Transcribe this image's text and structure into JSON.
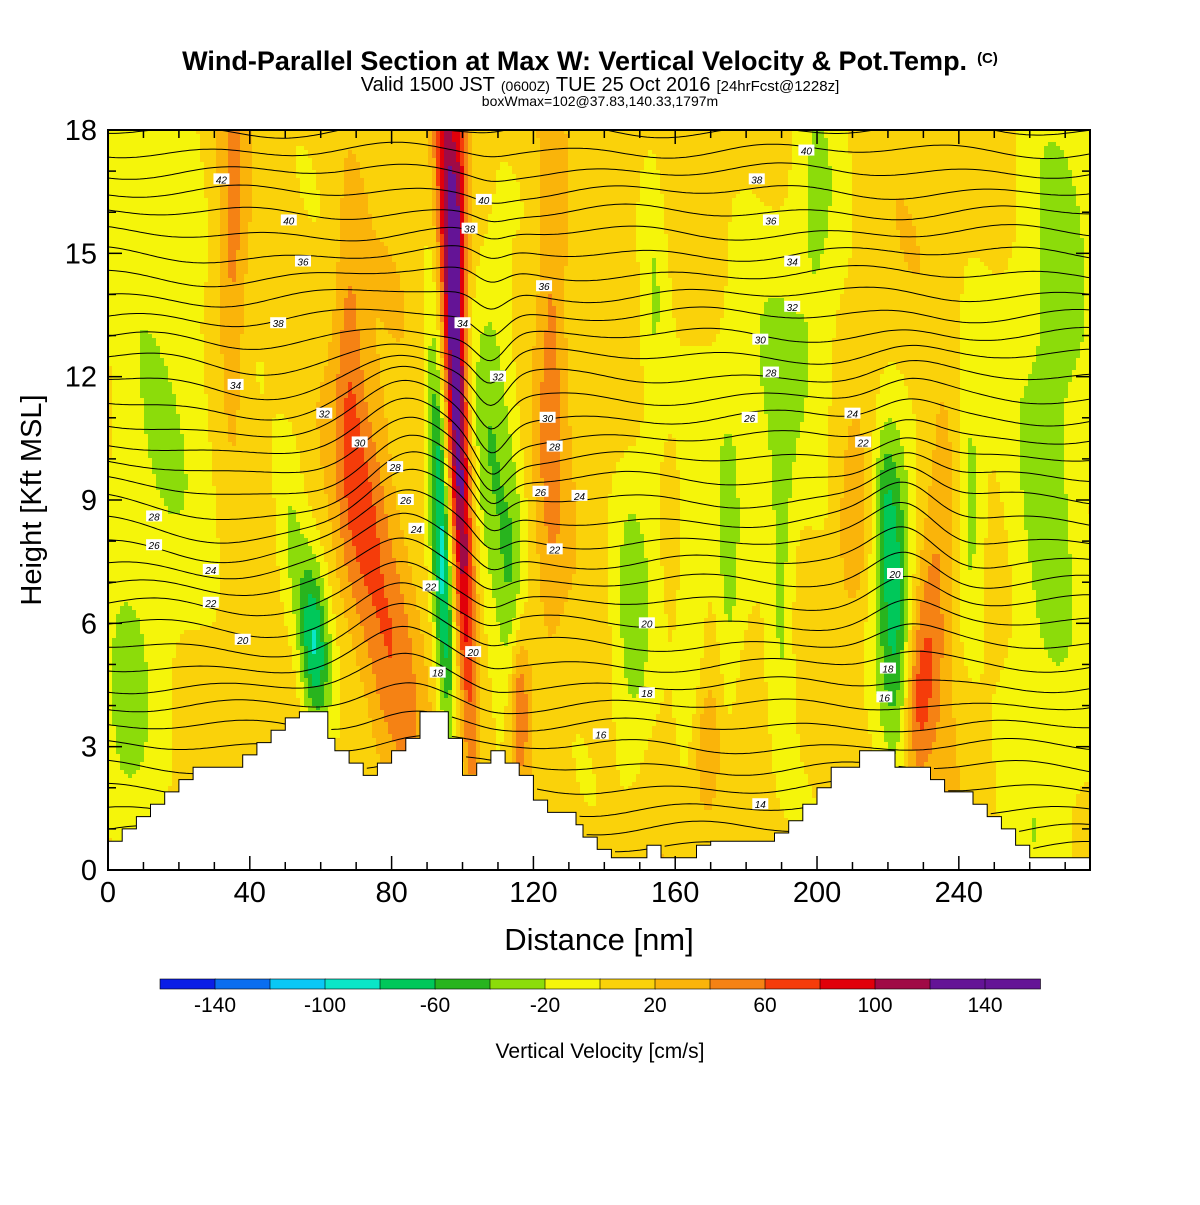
{
  "chart_data": {
    "type": "heatmap",
    "title": "Wind-Parallel Section at Max W: Vertical Velocity & Pot.Temp.",
    "title_mark": "(C)",
    "subtitle_parts": [
      "Valid 1500 JST",
      "(0600Z)",
      "TUE 25 Oct 2016",
      "[24hrFcst@1228z]"
    ],
    "subtitle2": "boxWmax=102@37.83,140.33,1797m",
    "xlabel": "Distance [nm]",
    "ylabel": "Height [Kft MSL]",
    "xlim": [
      0,
      277
    ],
    "ylim": [
      0,
      18
    ],
    "x_ticks": [
      0,
      40,
      80,
      120,
      160,
      200,
      240
    ],
    "y_ticks": [
      0,
      3,
      6,
      9,
      12,
      15,
      18
    ],
    "grid": false,
    "colorbar": {
      "label": "Vertical Velocity [cm/s]",
      "tick_labels": [
        "-140",
        "-100",
        "-60",
        "-20",
        "20",
        "60",
        "100",
        "140"
      ],
      "bins": [
        -160,
        -140,
        -120,
        -100,
        -80,
        -60,
        -40,
        -20,
        0,
        20,
        40,
        60,
        80,
        100,
        120,
        140,
        160
      ],
      "colors": [
        "#0a1ee6",
        "#0a6ef0",
        "#0ac8f5",
        "#0ae6c8",
        "#00c85a",
        "#28b41e",
        "#8cdc0a",
        "#f5f50a",
        "#fad20a",
        "#fab40a",
        "#f58214",
        "#f53c0a",
        "#e1000a",
        "#a00a46",
        "#641496",
        "#641496"
      ]
    },
    "terrain": [
      [
        0,
        0.7
      ],
      [
        4,
        0.7
      ],
      [
        4,
        1.0
      ],
      [
        8,
        1.0
      ],
      [
        8,
        1.3
      ],
      [
        12,
        1.3
      ],
      [
        12,
        1.6
      ],
      [
        16,
        1.6
      ],
      [
        16,
        1.9
      ],
      [
        20,
        1.9
      ],
      [
        20,
        2.2
      ],
      [
        24,
        2.2
      ],
      [
        24,
        2.5
      ],
      [
        38,
        2.5
      ],
      [
        38,
        2.8
      ],
      [
        42,
        2.8
      ],
      [
        42,
        3.1
      ],
      [
        46,
        3.1
      ],
      [
        46,
        3.4
      ],
      [
        50,
        3.4
      ],
      [
        50,
        3.7
      ],
      [
        54,
        3.7
      ],
      [
        54,
        3.85
      ],
      [
        62,
        3.85
      ],
      [
        62,
        3.2
      ],
      [
        64,
        3.2
      ],
      [
        64,
        2.9
      ],
      [
        68,
        2.9
      ],
      [
        68,
        2.6
      ],
      [
        72,
        2.6
      ],
      [
        72,
        2.3
      ],
      [
        76,
        2.3
      ],
      [
        76,
        2.6
      ],
      [
        80,
        2.6
      ],
      [
        80,
        2.9
      ],
      [
        84,
        2.9
      ],
      [
        84,
        3.2
      ],
      [
        88,
        3.2
      ],
      [
        88,
        3.85
      ],
      [
        96,
        3.85
      ],
      [
        96,
        3.2
      ],
      [
        100,
        3.2
      ],
      [
        100,
        2.3
      ],
      [
        104,
        2.3
      ],
      [
        104,
        2.6
      ],
      [
        108,
        2.6
      ],
      [
        108,
        2.9
      ],
      [
        112,
        2.9
      ],
      [
        112,
        2.6
      ],
      [
        116,
        2.6
      ],
      [
        116,
        2.3
      ],
      [
        120,
        2.3
      ],
      [
        120,
        1.7
      ],
      [
        124,
        1.7
      ],
      [
        124,
        1.4
      ],
      [
        132,
        1.4
      ],
      [
        132,
        1.1
      ],
      [
        134,
        1.1
      ],
      [
        134,
        0.8
      ],
      [
        138,
        0.8
      ],
      [
        138,
        0.5
      ],
      [
        142,
        0.5
      ],
      [
        142,
        0.3
      ],
      [
        152,
        0.3
      ],
      [
        152,
        0.6
      ],
      [
        156,
        0.6
      ],
      [
        156,
        0.3
      ],
      [
        166,
        0.3
      ],
      [
        166,
        0.6
      ],
      [
        170,
        0.6
      ],
      [
        170,
        0.7
      ],
      [
        188,
        0.7
      ],
      [
        188,
        0.9
      ],
      [
        192,
        0.9
      ],
      [
        192,
        1.2
      ],
      [
        196,
        1.2
      ],
      [
        196,
        1.6
      ],
      [
        200,
        1.6
      ],
      [
        200,
        2.0
      ],
      [
        204,
        2.0
      ],
      [
        204,
        2.5
      ],
      [
        212,
        2.5
      ],
      [
        212,
        2.9
      ],
      [
        222,
        2.9
      ],
      [
        222,
        2.5
      ],
      [
        232,
        2.5
      ],
      [
        232,
        2.2
      ],
      [
        236,
        2.2
      ],
      [
        236,
        1.9
      ],
      [
        244,
        1.9
      ],
      [
        244,
        1.6
      ],
      [
        248,
        1.6
      ],
      [
        248,
        1.3
      ],
      [
        252,
        1.3
      ],
      [
        252,
        1.0
      ],
      [
        256,
        1.0
      ],
      [
        256,
        0.6
      ],
      [
        260,
        0.6
      ],
      [
        260,
        0.3
      ],
      [
        277,
        0.3
      ]
    ],
    "w_features": [
      {
        "x": 98,
        "y": 12.0,
        "sx": 2.2,
        "sy": 6.0,
        "tilt": -0.5,
        "w": 130
      },
      {
        "x": 99,
        "y": 16.0,
        "sx": 1.8,
        "sy": 2.5,
        "tilt": 0,
        "w": 60
      },
      {
        "x": 94,
        "y": 8.0,
        "sx": 2.0,
        "sy": 3.5,
        "tilt": -0.45,
        "w": -95
      },
      {
        "x": 58,
        "y": 5.5,
        "sx": 3.0,
        "sy": 1.5,
        "tilt": -0.6,
        "w": -90
      },
      {
        "x": 51,
        "y": 8.0,
        "sx": 3.0,
        "sy": 1.8,
        "tilt": 0,
        "w": -30
      },
      {
        "x": 80,
        "y": 5.5,
        "sx": 6.0,
        "sy": 2.5,
        "tilt": -0.7,
        "w": 48
      },
      {
        "x": 73,
        "y": 9.0,
        "sx": 4.0,
        "sy": 2.0,
        "tilt": 0,
        "w": 35
      },
      {
        "x": 116,
        "y": 4.0,
        "sx": 2.0,
        "sy": 1.5,
        "tilt": 0,
        "w": 60
      },
      {
        "x": 114,
        "y": 6.5,
        "sx": 3.0,
        "sy": 2.5,
        "tilt": 0,
        "w": -45
      },
      {
        "x": 125,
        "y": 13.0,
        "sx": 3.0,
        "sy": 5.0,
        "tilt": 0,
        "w": 40
      },
      {
        "x": 35,
        "y": 15.0,
        "sx": 3.0,
        "sy": 3.0,
        "tilt": 0,
        "w": 45
      },
      {
        "x": 68,
        "y": 12.0,
        "sx": 3.0,
        "sy": 3.0,
        "tilt": 0,
        "w": 42
      },
      {
        "x": 108,
        "y": 10.0,
        "sx": 4.0,
        "sy": 4.0,
        "tilt": 0,
        "w": -40
      },
      {
        "x": 148,
        "y": 6.0,
        "sx": 4.0,
        "sy": 3.0,
        "tilt": 0,
        "w": -35
      },
      {
        "x": 222,
        "y": 6.5,
        "sx": 3.5,
        "sy": 2.5,
        "tilt": 0,
        "w": -75
      },
      {
        "x": 219,
        "y": 9.0,
        "sx": 2.5,
        "sy": 1.5,
        "tilt": 0,
        "w": -40
      },
      {
        "x": 210,
        "y": 8.0,
        "sx": 3.0,
        "sy": 1.5,
        "tilt": 0,
        "w": 32
      },
      {
        "x": 236,
        "y": 8.5,
        "sx": 4.0,
        "sy": 2.0,
        "tilt": 0,
        "w": 30
      },
      {
        "x": 243,
        "y": 9.0,
        "sx": 3.0,
        "sy": 2.5,
        "tilt": 0,
        "w": -40
      },
      {
        "x": 186,
        "y": 11.0,
        "sx": 12.0,
        "sy": 3.0,
        "tilt": 0,
        "w": -28
      },
      {
        "x": 200,
        "y": 15.5,
        "sx": 5.0,
        "sy": 3.0,
        "tilt": 0,
        "w": -28
      },
      {
        "x": 12,
        "y": 12.0,
        "sx": 12.0,
        "sy": 6.0,
        "tilt": 0,
        "w": -30
      },
      {
        "x": 5,
        "y": 3.0,
        "sx": 5.0,
        "sy": 2.0,
        "tilt": 0,
        "w": -25
      },
      {
        "x": 262,
        "y": 6.0,
        "sx": 8.0,
        "sy": 6.0,
        "tilt": 0,
        "w": -28
      },
      {
        "x": 270,
        "y": 13.0,
        "sx": 8.0,
        "sy": 5.0,
        "tilt": 0,
        "w": -30
      },
      {
        "x": 165,
        "y": 5.0,
        "sx": 3.0,
        "sy": 3.0,
        "tilt": 0,
        "w": -30
      },
      {
        "x": 175,
        "y": 6.0,
        "sx": 2.5,
        "sy": 3.0,
        "tilt": 0,
        "w": -28
      },
      {
        "x": 190,
        "y": 7.0,
        "sx": 2.5,
        "sy": 3.0,
        "tilt": 0,
        "w": -32
      },
      {
        "x": 228,
        "y": 4.0,
        "sx": 2.5,
        "sy": 1.5,
        "tilt": 0,
        "w": 45
      },
      {
        "x": 232,
        "y": 5.5,
        "sx": 3.0,
        "sy": 2.0,
        "tilt": 0,
        "w": 35
      },
      {
        "x": 154,
        "y": 14.0,
        "sx": 3.0,
        "sy": 3.0,
        "tilt": 0,
        "w": -30
      },
      {
        "x": 168,
        "y": 2.8,
        "sx": 3.0,
        "sy": 1.2,
        "tilt": 0,
        "w": 35
      }
    ],
    "theta_labels": [
      {
        "x": 32,
        "y": 16.8,
        "text": "42"
      },
      {
        "x": 51,
        "y": 15.8,
        "text": "40"
      },
      {
        "x": 55,
        "y": 14.8,
        "text": "36"
      },
      {
        "x": 48,
        "y": 13.3,
        "text": "38"
      },
      {
        "x": 36,
        "y": 11.8,
        "text": "34"
      },
      {
        "x": 61,
        "y": 11.1,
        "text": "32"
      },
      {
        "x": 71,
        "y": 10.4,
        "text": "30"
      },
      {
        "x": 81,
        "y": 9.8,
        "text": "28"
      },
      {
        "x": 84,
        "y": 9.0,
        "text": "26"
      },
      {
        "x": 87,
        "y": 8.3,
        "text": "24"
      },
      {
        "x": 13,
        "y": 8.6,
        "text": "28"
      },
      {
        "x": 13,
        "y": 7.9,
        "text": "26"
      },
      {
        "x": 29,
        "y": 7.3,
        "text": "24"
      },
      {
        "x": 29,
        "y": 6.5,
        "text": "22"
      },
      {
        "x": 38,
        "y": 5.6,
        "text": "20"
      },
      {
        "x": 91,
        "y": 6.9,
        "text": "22"
      },
      {
        "x": 93,
        "y": 4.8,
        "text": "18"
      },
      {
        "x": 103,
        "y": 5.3,
        "text": "20"
      },
      {
        "x": 106,
        "y": 16.3,
        "text": "40"
      },
      {
        "x": 102,
        "y": 15.6,
        "text": "38"
      },
      {
        "x": 100,
        "y": 13.3,
        "text": "34"
      },
      {
        "x": 110,
        "y": 12.0,
        "text": "32"
      },
      {
        "x": 123,
        "y": 14.2,
        "text": "36"
      },
      {
        "x": 124,
        "y": 11.0,
        "text": "30"
      },
      {
        "x": 126,
        "y": 10.3,
        "text": "28"
      },
      {
        "x": 122,
        "y": 9.2,
        "text": "26"
      },
      {
        "x": 133,
        "y": 9.1,
        "text": "24"
      },
      {
        "x": 126,
        "y": 7.8,
        "text": "22"
      },
      {
        "x": 152,
        "y": 6.0,
        "text": "20"
      },
      {
        "x": 152,
        "y": 4.3,
        "text": "18"
      },
      {
        "x": 139,
        "y": 3.3,
        "text": "16"
      },
      {
        "x": 184,
        "y": 1.6,
        "text": "14"
      },
      {
        "x": 197,
        "y": 17.5,
        "text": "40"
      },
      {
        "x": 183,
        "y": 16.8,
        "text": "38"
      },
      {
        "x": 187,
        "y": 15.8,
        "text": "36"
      },
      {
        "x": 193,
        "y": 14.8,
        "text": "34"
      },
      {
        "x": 193,
        "y": 13.7,
        "text": "32"
      },
      {
        "x": 184,
        "y": 12.9,
        "text": "30"
      },
      {
        "x": 187,
        "y": 12.1,
        "text": "28"
      },
      {
        "x": 181,
        "y": 11.0,
        "text": "26"
      },
      {
        "x": 210,
        "y": 11.1,
        "text": "24"
      },
      {
        "x": 213,
        "y": 10.4,
        "text": "22"
      },
      {
        "x": 222,
        "y": 7.2,
        "text": "20"
      },
      {
        "x": 220,
        "y": 4.9,
        "text": "18"
      },
      {
        "x": 219,
        "y": 4.2,
        "text": "16"
      }
    ]
  }
}
